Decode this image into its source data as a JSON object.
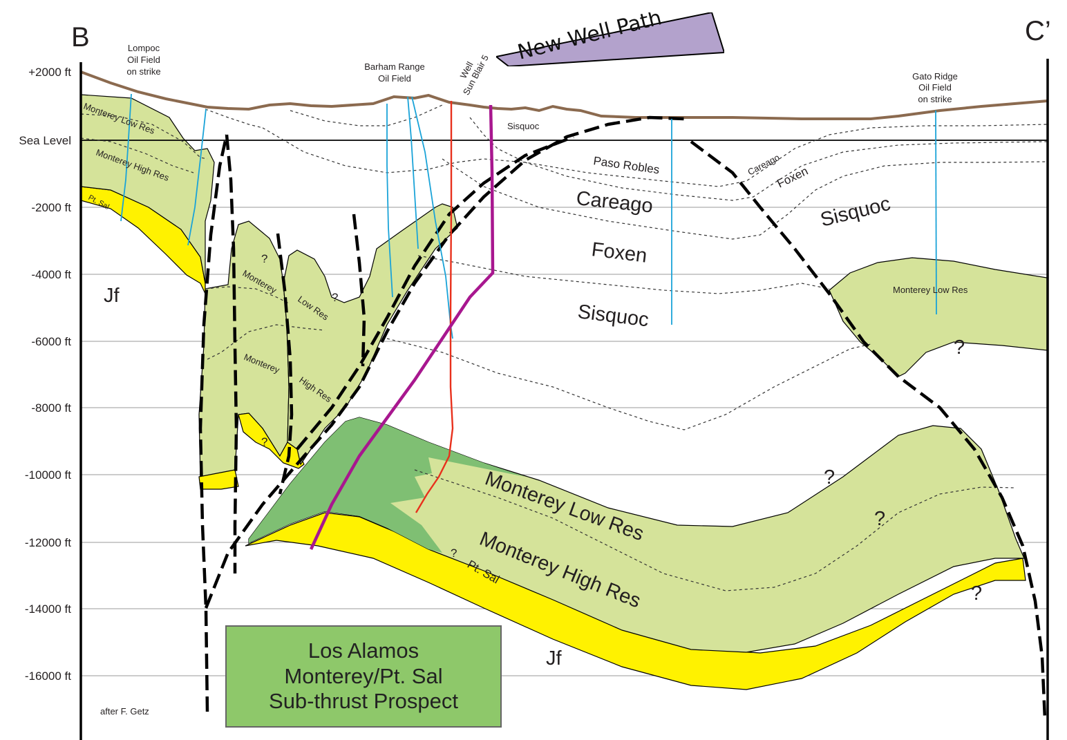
{
  "corners": {
    "left": "B",
    "right": "C’"
  },
  "depth_axis": [
    "+2000 ft",
    "Sea Level",
    "-2000 ft",
    "-4000 ft",
    "-6000 ft",
    "-8000 ft",
    "-10000 ft",
    "-12000 ft",
    "-14000 ft",
    "-16000 ft"
  ],
  "fields": {
    "lompoc": [
      "Lompoc",
      "Oil Field",
      "on strike"
    ],
    "barham": [
      "Barham Range",
      "Oil Field"
    ],
    "well": [
      "Well",
      "Sun Blair 5"
    ],
    "gato": [
      "Gato Ridge",
      "Oil Field",
      "on strike"
    ]
  },
  "new_well_path": "New Well Path",
  "formations": {
    "sisquoc_top": "Sisquoc",
    "paso_robles": "Paso Robles",
    "careago": "Careago",
    "foxen": "Foxen",
    "sisquoc": "Sisquoc",
    "careago_right_small": "Careago",
    "foxen_right": "Foxen",
    "sisquoc_right": "Sisquoc",
    "monterey_low_res_left": "Monterey Low Res",
    "monterey_high_res_left": "Monterey High Res",
    "pt_sal_left": "Pt. Sal",
    "monterey_mid": "Monterey",
    "low_res_mid": "Low Res",
    "monterey_mid2": "Monterey",
    "high_res_mid": "High Res",
    "monterey_low_res_right": "Monterey Low Res",
    "monterey_low_res_main": "Monterey Low Res",
    "monterey_high_res_main": "Monterey High Res",
    "pt_sal_main": "Pt. Sal",
    "jf_left": "Jf",
    "jf_bottom": "Jf"
  },
  "question": "?",
  "prospect_box": [
    "Los Alamos",
    "Monterey/Pt. Sal",
    "Sub-thrust Prospect"
  ],
  "credit": "after F. Getz",
  "colors": {
    "monterey": "#d5e39a",
    "pt_sal": "#fff200",
    "subthrust": "#7fbf73",
    "new_well": "#a8178f",
    "old_well": "#e8301c",
    "field_wells": "#1aa3d8",
    "surface": "#8b6a4f",
    "new_well_box": "#b3a2cc",
    "prospect_box": "#8ec86a"
  }
}
